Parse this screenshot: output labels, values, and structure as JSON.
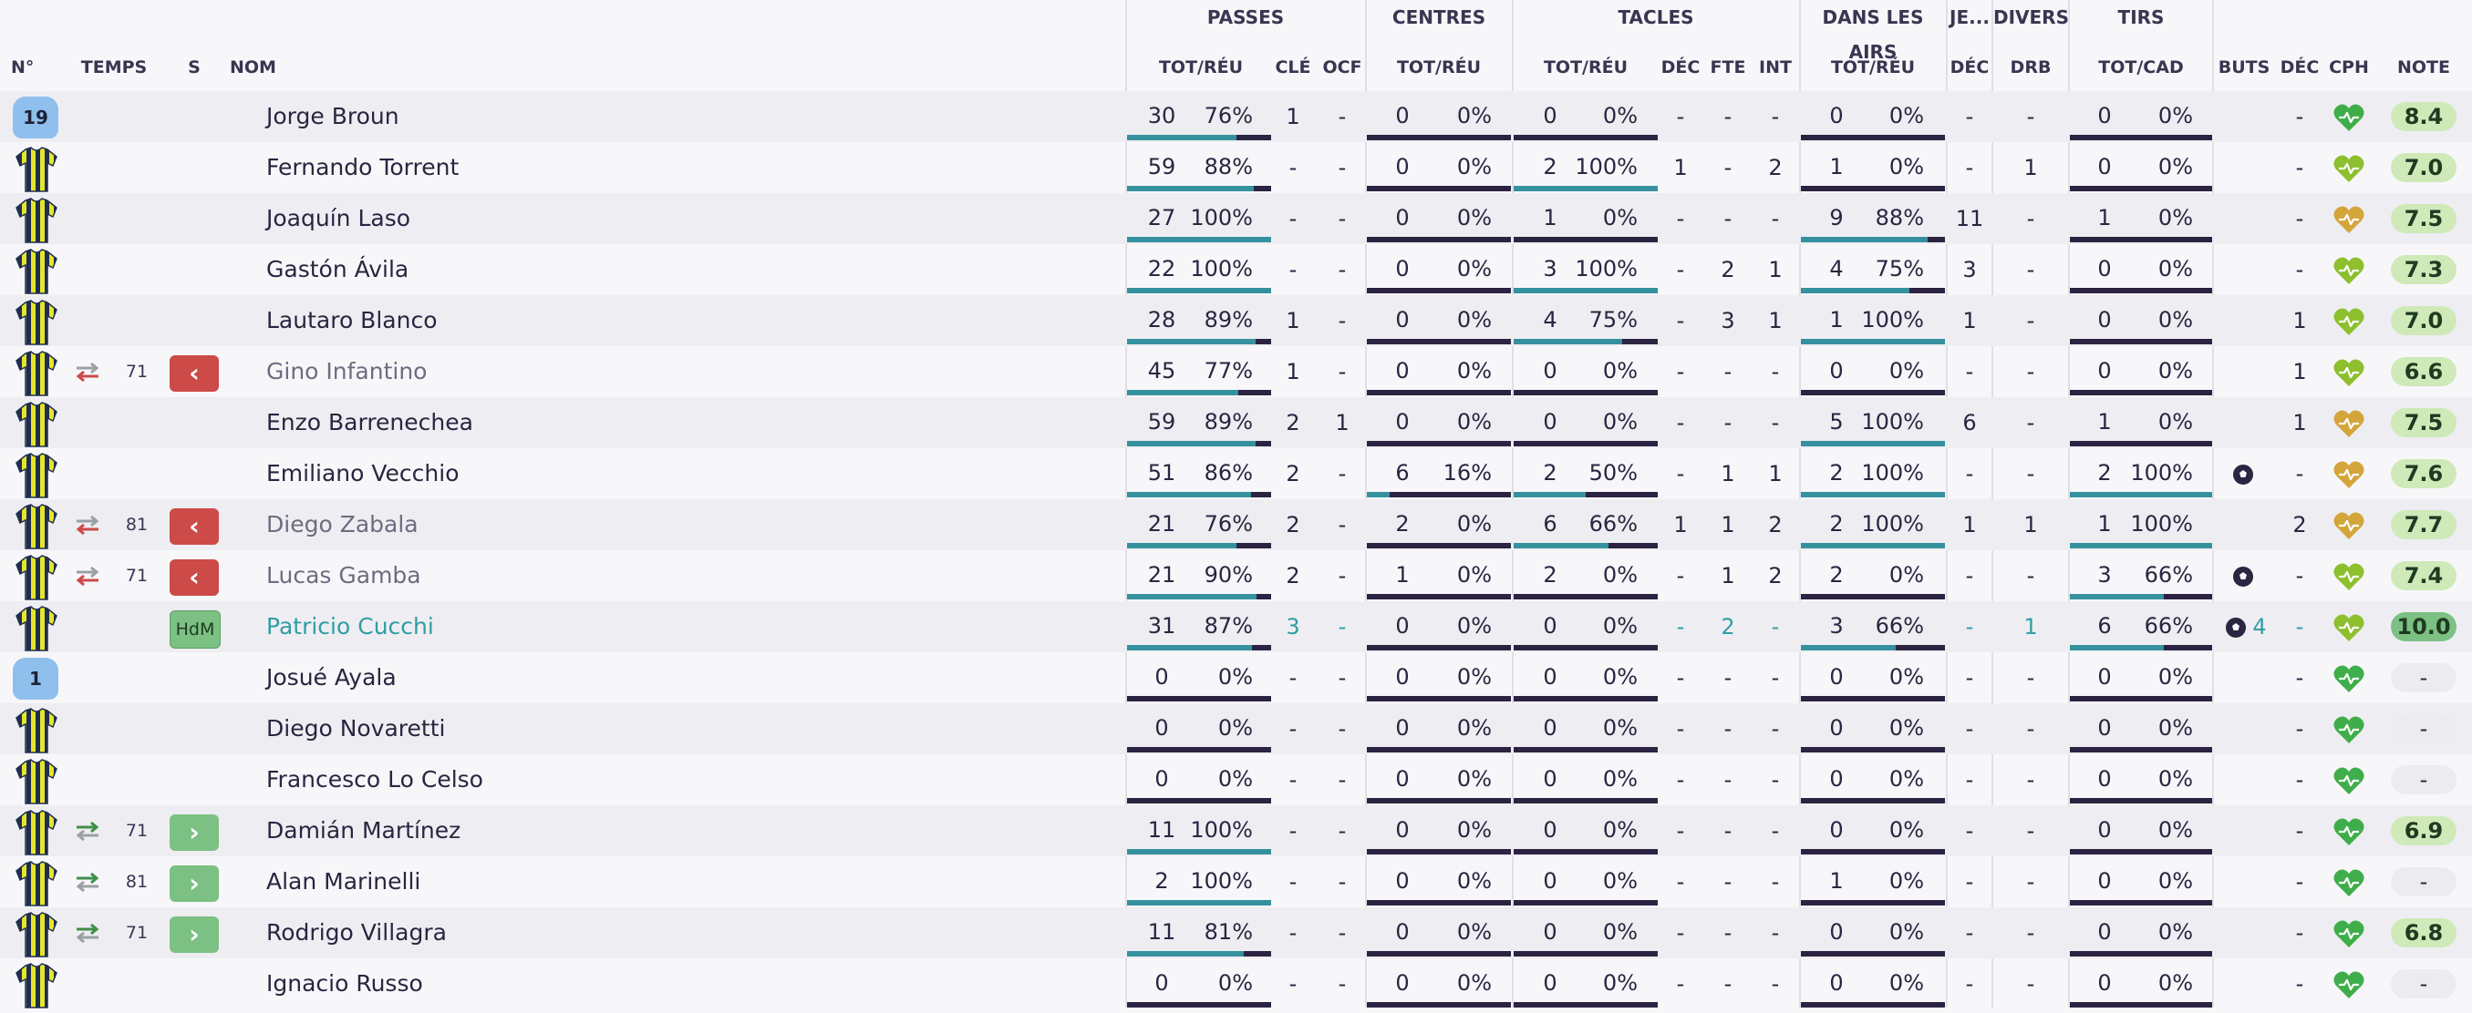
{
  "header": {
    "groups": {
      "passes": "PASSES",
      "centres": "CENTRES",
      "tacles": "TACLES",
      "airs": "DANS LES AIRS",
      "je": "JE...",
      "divers": "DIVERS",
      "tirs": "TIRS"
    },
    "columns": {
      "no": "N°",
      "temps": "TEMPS",
      "s": "S",
      "nom": "NOM",
      "pass_tot": "TOT/RÉU",
      "cle": "CLÉ",
      "ocf": "OCF",
      "cent_tot": "TOT/RÉU",
      "tac_tot": "TOT/RÉU",
      "tac_dec": "DÉC",
      "fte": "FTE",
      "int": "INT",
      "air_tot": "TOT/RÉU",
      "je_dec": "DÉC",
      "drb": "DRB",
      "tirs_tot": "TOT/CAD",
      "buts": "BUTS",
      "dec": "DÉC",
      "cph": "CPH",
      "note": "NOTE"
    }
  },
  "colors": {
    "bar_track": "#2c2342",
    "bar_fill": "#36919e",
    "sub_out": "#cc4a47",
    "sub_in": "#7cc083",
    "accent_teal": "#2f9ea3",
    "heart_green": "#3fae4a",
    "heart_lime": "#8dbf2e",
    "heart_gold": "#d4a53a",
    "rating_good": "#cfe9b8",
    "rating_best": "#7cc083"
  },
  "players": [
    {
      "shirt": "gk",
      "shirt_no": "19",
      "mins": "",
      "sub": "",
      "name": "Jorge Broun",
      "pass": [
        "30",
        "76%"
      ],
      "pass_pct": 76,
      "cle": "1",
      "ocf": "-",
      "cent": [
        "0",
        "0%"
      ],
      "cent_pct": 0,
      "tac": [
        "0",
        "0%"
      ],
      "tac_pct": 0,
      "tdec": "-",
      "fte": "-",
      "int": "-",
      "air": [
        "0",
        "0%"
      ],
      "air_pct": 0,
      "jedec": "-",
      "drb": "-",
      "tirs": [
        "0",
        "0%"
      ],
      "tirs_pct": 0,
      "buts": "",
      "dec": "-",
      "cph": "green",
      "note": "8.4"
    },
    {
      "shirt": "field",
      "shirt_no": "",
      "mins": "",
      "sub": "",
      "name": "Fernando Torrent",
      "pass": [
        "59",
        "88%"
      ],
      "pass_pct": 88,
      "cle": "-",
      "ocf": "-",
      "cent": [
        "0",
        "0%"
      ],
      "cent_pct": 0,
      "tac": [
        "2",
        "100%"
      ],
      "tac_pct": 100,
      "tdec": "1",
      "fte": "-",
      "int": "2",
      "air": [
        "1",
        "0%"
      ],
      "air_pct": 0,
      "jedec": "-",
      "drb": "1",
      "tirs": [
        "0",
        "0%"
      ],
      "tirs_pct": 0,
      "buts": "",
      "dec": "-",
      "cph": "lime",
      "note": "7.0"
    },
    {
      "shirt": "field",
      "shirt_no": "",
      "mins": "",
      "sub": "",
      "name": "Joaquín Laso",
      "pass": [
        "27",
        "100%"
      ],
      "pass_pct": 100,
      "cle": "-",
      "ocf": "-",
      "cent": [
        "0",
        "0%"
      ],
      "cent_pct": 0,
      "tac": [
        "1",
        "0%"
      ],
      "tac_pct": 0,
      "tdec": "-",
      "fte": "-",
      "int": "-",
      "air": [
        "9",
        "88%"
      ],
      "air_pct": 88,
      "jedec": "11",
      "drb": "-",
      "tirs": [
        "1",
        "0%"
      ],
      "tirs_pct": 0,
      "buts": "",
      "dec": "-",
      "cph": "gold",
      "note": "7.5"
    },
    {
      "shirt": "field",
      "shirt_no": "",
      "mins": "",
      "sub": "",
      "name": "Gastón Ávila",
      "pass": [
        "22",
        "100%"
      ],
      "pass_pct": 100,
      "cle": "-",
      "ocf": "-",
      "cent": [
        "0",
        "0%"
      ],
      "cent_pct": 0,
      "tac": [
        "3",
        "100%"
      ],
      "tac_pct": 100,
      "tdec": "-",
      "fte": "2",
      "int": "1",
      "air": [
        "4",
        "75%"
      ],
      "air_pct": 75,
      "jedec": "3",
      "drb": "-",
      "tirs": [
        "0",
        "0%"
      ],
      "tirs_pct": 0,
      "buts": "",
      "dec": "-",
      "cph": "lime",
      "note": "7.3"
    },
    {
      "shirt": "field",
      "shirt_no": "",
      "mins": "",
      "sub": "",
      "name": "Lautaro Blanco",
      "pass": [
        "28",
        "89%"
      ],
      "pass_pct": 89,
      "cle": "1",
      "ocf": "-",
      "cent": [
        "0",
        "0%"
      ],
      "cent_pct": 0,
      "tac": [
        "4",
        "75%"
      ],
      "tac_pct": 75,
      "tdec": "-",
      "fte": "3",
      "int": "1",
      "air": [
        "1",
        "100%"
      ],
      "air_pct": 100,
      "jedec": "1",
      "drb": "-",
      "tirs": [
        "0",
        "0%"
      ],
      "tirs_pct": 0,
      "buts": "",
      "dec": "1",
      "cph": "lime",
      "note": "7.0"
    },
    {
      "shirt": "field",
      "shirt_no": "",
      "mins": "71",
      "sub": "out",
      "name": "Gino Infantino",
      "pass": [
        "45",
        "77%"
      ],
      "pass_pct": 77,
      "cle": "1",
      "ocf": "-",
      "cent": [
        "0",
        "0%"
      ],
      "cent_pct": 0,
      "tac": [
        "0",
        "0%"
      ],
      "tac_pct": 0,
      "tdec": "-",
      "fte": "-",
      "int": "-",
      "air": [
        "0",
        "0%"
      ],
      "air_pct": 0,
      "jedec": "-",
      "drb": "-",
      "tirs": [
        "0",
        "0%"
      ],
      "tirs_pct": 0,
      "buts": "",
      "dec": "1",
      "cph": "lime",
      "note": "6.6"
    },
    {
      "shirt": "field",
      "shirt_no": "",
      "mins": "",
      "sub": "",
      "name": "Enzo Barrenechea",
      "pass": [
        "59",
        "89%"
      ],
      "pass_pct": 89,
      "cle": "2",
      "ocf": "1",
      "cent": [
        "0",
        "0%"
      ],
      "cent_pct": 0,
      "tac": [
        "0",
        "0%"
      ],
      "tac_pct": 0,
      "tdec": "-",
      "fte": "-",
      "int": "-",
      "air": [
        "5",
        "100%"
      ],
      "air_pct": 100,
      "jedec": "6",
      "drb": "-",
      "tirs": [
        "1",
        "0%"
      ],
      "tirs_pct": 0,
      "buts": "",
      "dec": "1",
      "cph": "gold",
      "note": "7.5"
    },
    {
      "shirt": "field",
      "shirt_no": "",
      "mins": "",
      "sub": "",
      "name": "Emiliano Vecchio",
      "pass": [
        "51",
        "86%"
      ],
      "pass_pct": 86,
      "cle": "2",
      "ocf": "-",
      "cent": [
        "6",
        "16%"
      ],
      "cent_pct": 16,
      "tac": [
        "2",
        "50%"
      ],
      "tac_pct": 50,
      "tdec": "-",
      "fte": "1",
      "int": "1",
      "air": [
        "2",
        "100%"
      ],
      "air_pct": 100,
      "jedec": "-",
      "drb": "-",
      "tirs": [
        "2",
        "100%"
      ],
      "tirs_pct": 100,
      "buts": "ball",
      "dec": "-",
      "cph": "gold",
      "note": "7.6"
    },
    {
      "shirt": "field",
      "shirt_no": "",
      "mins": "81",
      "sub": "out",
      "name": "Diego Zabala",
      "pass": [
        "21",
        "76%"
      ],
      "pass_pct": 76,
      "cle": "2",
      "ocf": "-",
      "cent": [
        "2",
        "0%"
      ],
      "cent_pct": 0,
      "tac": [
        "6",
        "66%"
      ],
      "tac_pct": 66,
      "tdec": "1",
      "fte": "1",
      "int": "2",
      "air": [
        "2",
        "100%"
      ],
      "air_pct": 100,
      "jedec": "1",
      "drb": "1",
      "tirs": [
        "1",
        "100%"
      ],
      "tirs_pct": 100,
      "buts": "",
      "dec": "2",
      "cph": "gold",
      "note": "7.7"
    },
    {
      "shirt": "field",
      "shirt_no": "",
      "mins": "71",
      "sub": "out",
      "name": "Lucas Gamba",
      "pass": [
        "21",
        "90%"
      ],
      "pass_pct": 90,
      "cle": "2",
      "ocf": "-",
      "cent": [
        "1",
        "0%"
      ],
      "cent_pct": 0,
      "tac": [
        "2",
        "0%"
      ],
      "tac_pct": 0,
      "tdec": "-",
      "fte": "1",
      "int": "2",
      "air": [
        "2",
        "0%"
      ],
      "air_pct": 0,
      "jedec": "-",
      "drb": "-",
      "tirs": [
        "3",
        "66%"
      ],
      "tirs_pct": 66,
      "buts": "ball",
      "dec": "-",
      "cph": "lime",
      "note": "7.4"
    },
    {
      "shirt": "field",
      "shirt_no": "",
      "mins": "",
      "sub": "motm",
      "sub_label": "HdM",
      "name": "Patricio Cucchi",
      "pass": [
        "31",
        "87%"
      ],
      "pass_pct": 87,
      "cle": "3",
      "ocf": "-",
      "cent": [
        "0",
        "0%"
      ],
      "cent_pct": 0,
      "tac": [
        "0",
        "0%"
      ],
      "tac_pct": 0,
      "tdec": "-",
      "fte": "2",
      "int": "-",
      "air": [
        "3",
        "66%"
      ],
      "air_pct": 66,
      "jedec": "-",
      "drb": "1",
      "tirs": [
        "6",
        "66%"
      ],
      "tirs_pct": 66,
      "buts": "ball4",
      "buts_count": "4",
      "dec": "-",
      "cph": "lime",
      "note": "10.0"
    },
    {
      "shirt": "gk",
      "shirt_no": "1",
      "mins": "",
      "sub": "",
      "name": "Josué Ayala",
      "pass": [
        "0",
        "0%"
      ],
      "pass_pct": 0,
      "cle": "-",
      "ocf": "-",
      "cent": [
        "0",
        "0%"
      ],
      "cent_pct": 0,
      "tac": [
        "0",
        "0%"
      ],
      "tac_pct": 0,
      "tdec": "-",
      "fte": "-",
      "int": "-",
      "air": [
        "0",
        "0%"
      ],
      "air_pct": 0,
      "jedec": "-",
      "drb": "-",
      "tirs": [
        "0",
        "0%"
      ],
      "tirs_pct": 0,
      "buts": "",
      "dec": "-",
      "cph": "green",
      "note": "-"
    },
    {
      "shirt": "field",
      "shirt_no": "",
      "mins": "",
      "sub": "",
      "name": "Diego Novaretti",
      "pass": [
        "0",
        "0%"
      ],
      "pass_pct": 0,
      "cle": "-",
      "ocf": "-",
      "cent": [
        "0",
        "0%"
      ],
      "cent_pct": 0,
      "tac": [
        "0",
        "0%"
      ],
      "tac_pct": 0,
      "tdec": "-",
      "fte": "-",
      "int": "-",
      "air": [
        "0",
        "0%"
      ],
      "air_pct": 0,
      "jedec": "-",
      "drb": "-",
      "tirs": [
        "0",
        "0%"
      ],
      "tirs_pct": 0,
      "buts": "",
      "dec": "-",
      "cph": "green",
      "note": "-"
    },
    {
      "shirt": "field",
      "shirt_no": "",
      "mins": "",
      "sub": "",
      "name": "Francesco Lo Celso",
      "pass": [
        "0",
        "0%"
      ],
      "pass_pct": 0,
      "cle": "-",
      "ocf": "-",
      "cent": [
        "0",
        "0%"
      ],
      "cent_pct": 0,
      "tac": [
        "0",
        "0%"
      ],
      "tac_pct": 0,
      "tdec": "-",
      "fte": "-",
      "int": "-",
      "air": [
        "0",
        "0%"
      ],
      "air_pct": 0,
      "jedec": "-",
      "drb": "-",
      "tirs": [
        "0",
        "0%"
      ],
      "tirs_pct": 0,
      "buts": "",
      "dec": "-",
      "cph": "green",
      "note": "-"
    },
    {
      "shirt": "field",
      "shirt_no": "",
      "mins": "71",
      "sub": "in",
      "name": "Damián Martínez",
      "pass": [
        "11",
        "100%"
      ],
      "pass_pct": 100,
      "cle": "-",
      "ocf": "-",
      "cent": [
        "0",
        "0%"
      ],
      "cent_pct": 0,
      "tac": [
        "0",
        "0%"
      ],
      "tac_pct": 0,
      "tdec": "-",
      "fte": "-",
      "int": "-",
      "air": [
        "0",
        "0%"
      ],
      "air_pct": 0,
      "jedec": "-",
      "drb": "-",
      "tirs": [
        "0",
        "0%"
      ],
      "tirs_pct": 0,
      "buts": "",
      "dec": "-",
      "cph": "green",
      "note": "6.9"
    },
    {
      "shirt": "field",
      "shirt_no": "",
      "mins": "81",
      "sub": "in",
      "name": "Alan Marinelli",
      "pass": [
        "2",
        "100%"
      ],
      "pass_pct": 100,
      "cle": "-",
      "ocf": "-",
      "cent": [
        "0",
        "0%"
      ],
      "cent_pct": 0,
      "tac": [
        "0",
        "0%"
      ],
      "tac_pct": 0,
      "tdec": "-",
      "fte": "-",
      "int": "-",
      "air": [
        "1",
        "0%"
      ],
      "air_pct": 0,
      "jedec": "-",
      "drb": "-",
      "tirs": [
        "0",
        "0%"
      ],
      "tirs_pct": 0,
      "buts": "",
      "dec": "-",
      "cph": "green",
      "note": "-"
    },
    {
      "shirt": "field",
      "shirt_no": "",
      "mins": "71",
      "sub": "in",
      "name": "Rodrigo Villagra",
      "pass": [
        "11",
        "81%"
      ],
      "pass_pct": 81,
      "cle": "-",
      "ocf": "-",
      "cent": [
        "0",
        "0%"
      ],
      "cent_pct": 0,
      "tac": [
        "0",
        "0%"
      ],
      "tac_pct": 0,
      "tdec": "-",
      "fte": "-",
      "int": "-",
      "air": [
        "0",
        "0%"
      ],
      "air_pct": 0,
      "jedec": "-",
      "drb": "-",
      "tirs": [
        "0",
        "0%"
      ],
      "tirs_pct": 0,
      "buts": "",
      "dec": "-",
      "cph": "green",
      "note": "6.8"
    },
    {
      "shirt": "field",
      "shirt_no": "",
      "mins": "",
      "sub": "",
      "name": "Ignacio Russo",
      "pass": [
        "0",
        "0%"
      ],
      "pass_pct": 0,
      "cle": "-",
      "ocf": "-",
      "cent": [
        "0",
        "0%"
      ],
      "cent_pct": 0,
      "tac": [
        "0",
        "0%"
      ],
      "tac_pct": 0,
      "tdec": "-",
      "fte": "-",
      "int": "-",
      "air": [
        "0",
        "0%"
      ],
      "air_pct": 0,
      "jedec": "-",
      "drb": "-",
      "tirs": [
        "0",
        "0%"
      ],
      "tirs_pct": 0,
      "buts": "",
      "dec": "-",
      "cph": "green",
      "note": "-"
    }
  ]
}
